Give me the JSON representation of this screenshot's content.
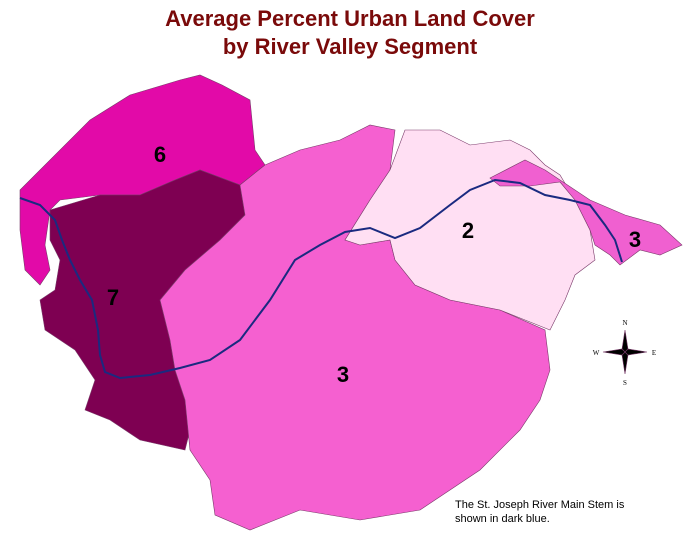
{
  "title": [
    "Average Percent Urban Land Cover",
    "by River Valley Segment"
  ],
  "regions": [
    {
      "label": "6"
    },
    {
      "label": "7"
    },
    {
      "label": "2"
    },
    {
      "label": "3"
    },
    {
      "label": "3"
    }
  ],
  "compass": {
    "north": "N",
    "south": "S",
    "east": "E",
    "west": "W"
  },
  "note": [
    "The St. Joseph River Main Stem is",
    "shown in dark blue."
  ]
}
